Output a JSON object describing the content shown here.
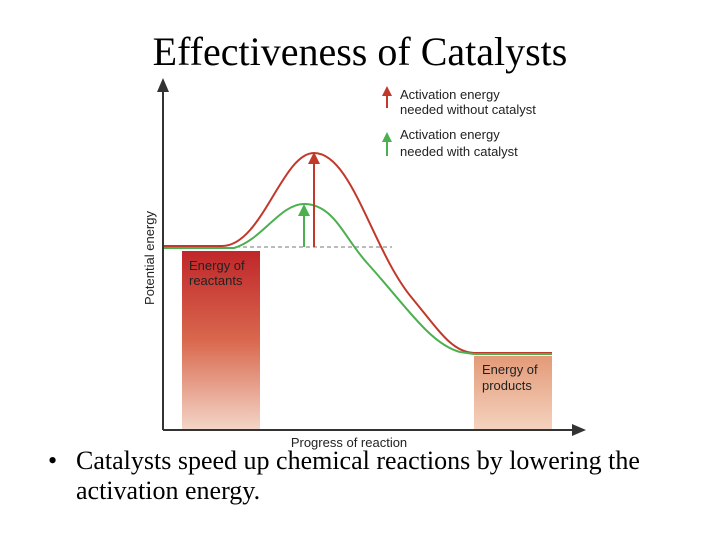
{
  "slide": {
    "title": "Effectiveness of Catalysts",
    "bullet_marker": "•",
    "bullet_text": "Catalysts speed up chemical reactions by lowering the activation energy."
  },
  "diagram": {
    "y_axis_label": "Potential energy",
    "x_axis_label": "Progress of reaction",
    "reactants_label_line1": "Energy of",
    "reactants_label_line2": "reactants",
    "products_label_line1": "Energy of",
    "products_label_line2": "products",
    "legend": {
      "without_line1": "Activation energy",
      "without_line2": "needed without catalyst",
      "with_line1": "Activation energy",
      "with_line2": "needed with catalyst"
    },
    "colors": {
      "uncatalyzed": "#c0392b",
      "catalyzed": "#4caf50",
      "reactants_bar_top": "#c0262a",
      "products_bar": "#e8a07e",
      "axis": "#333333"
    }
  }
}
